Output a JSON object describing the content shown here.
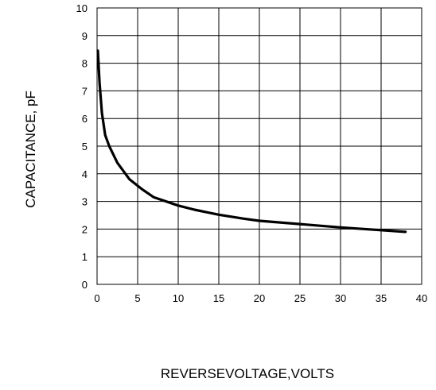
{
  "chart_data": {
    "type": "line",
    "title": "",
    "xlabel": "REVERSEVOLTAGE,VOLTS",
    "ylabel": "CAPACITANCE, pF",
    "xlim": [
      0,
      40
    ],
    "ylim": [
      0,
      10
    ],
    "x_ticks": [
      "0",
      "5",
      "10",
      "15",
      "20",
      "25",
      "30",
      "35",
      "40"
    ],
    "y_ticks": [
      "0",
      "1",
      "2",
      "3",
      "4",
      "5",
      "6",
      "7",
      "8",
      "9",
      "10"
    ],
    "grid": true,
    "series": [
      {
        "name": "",
        "color": "#000000",
        "x": [
          0.1,
          0.3,
          0.6,
          1.0,
          1.5,
          2.5,
          4.0,
          5.5,
          7.0,
          9.0,
          10.0,
          12.0,
          15.0,
          18.0,
          20.0,
          25.0,
          30.0,
          35.0,
          38.0
        ],
        "y": [
          8.45,
          7.3,
          6.2,
          5.4,
          5.0,
          4.4,
          3.8,
          3.45,
          3.15,
          2.95,
          2.85,
          2.7,
          2.52,
          2.38,
          2.3,
          2.18,
          2.06,
          1.96,
          1.9
        ]
      }
    ]
  }
}
